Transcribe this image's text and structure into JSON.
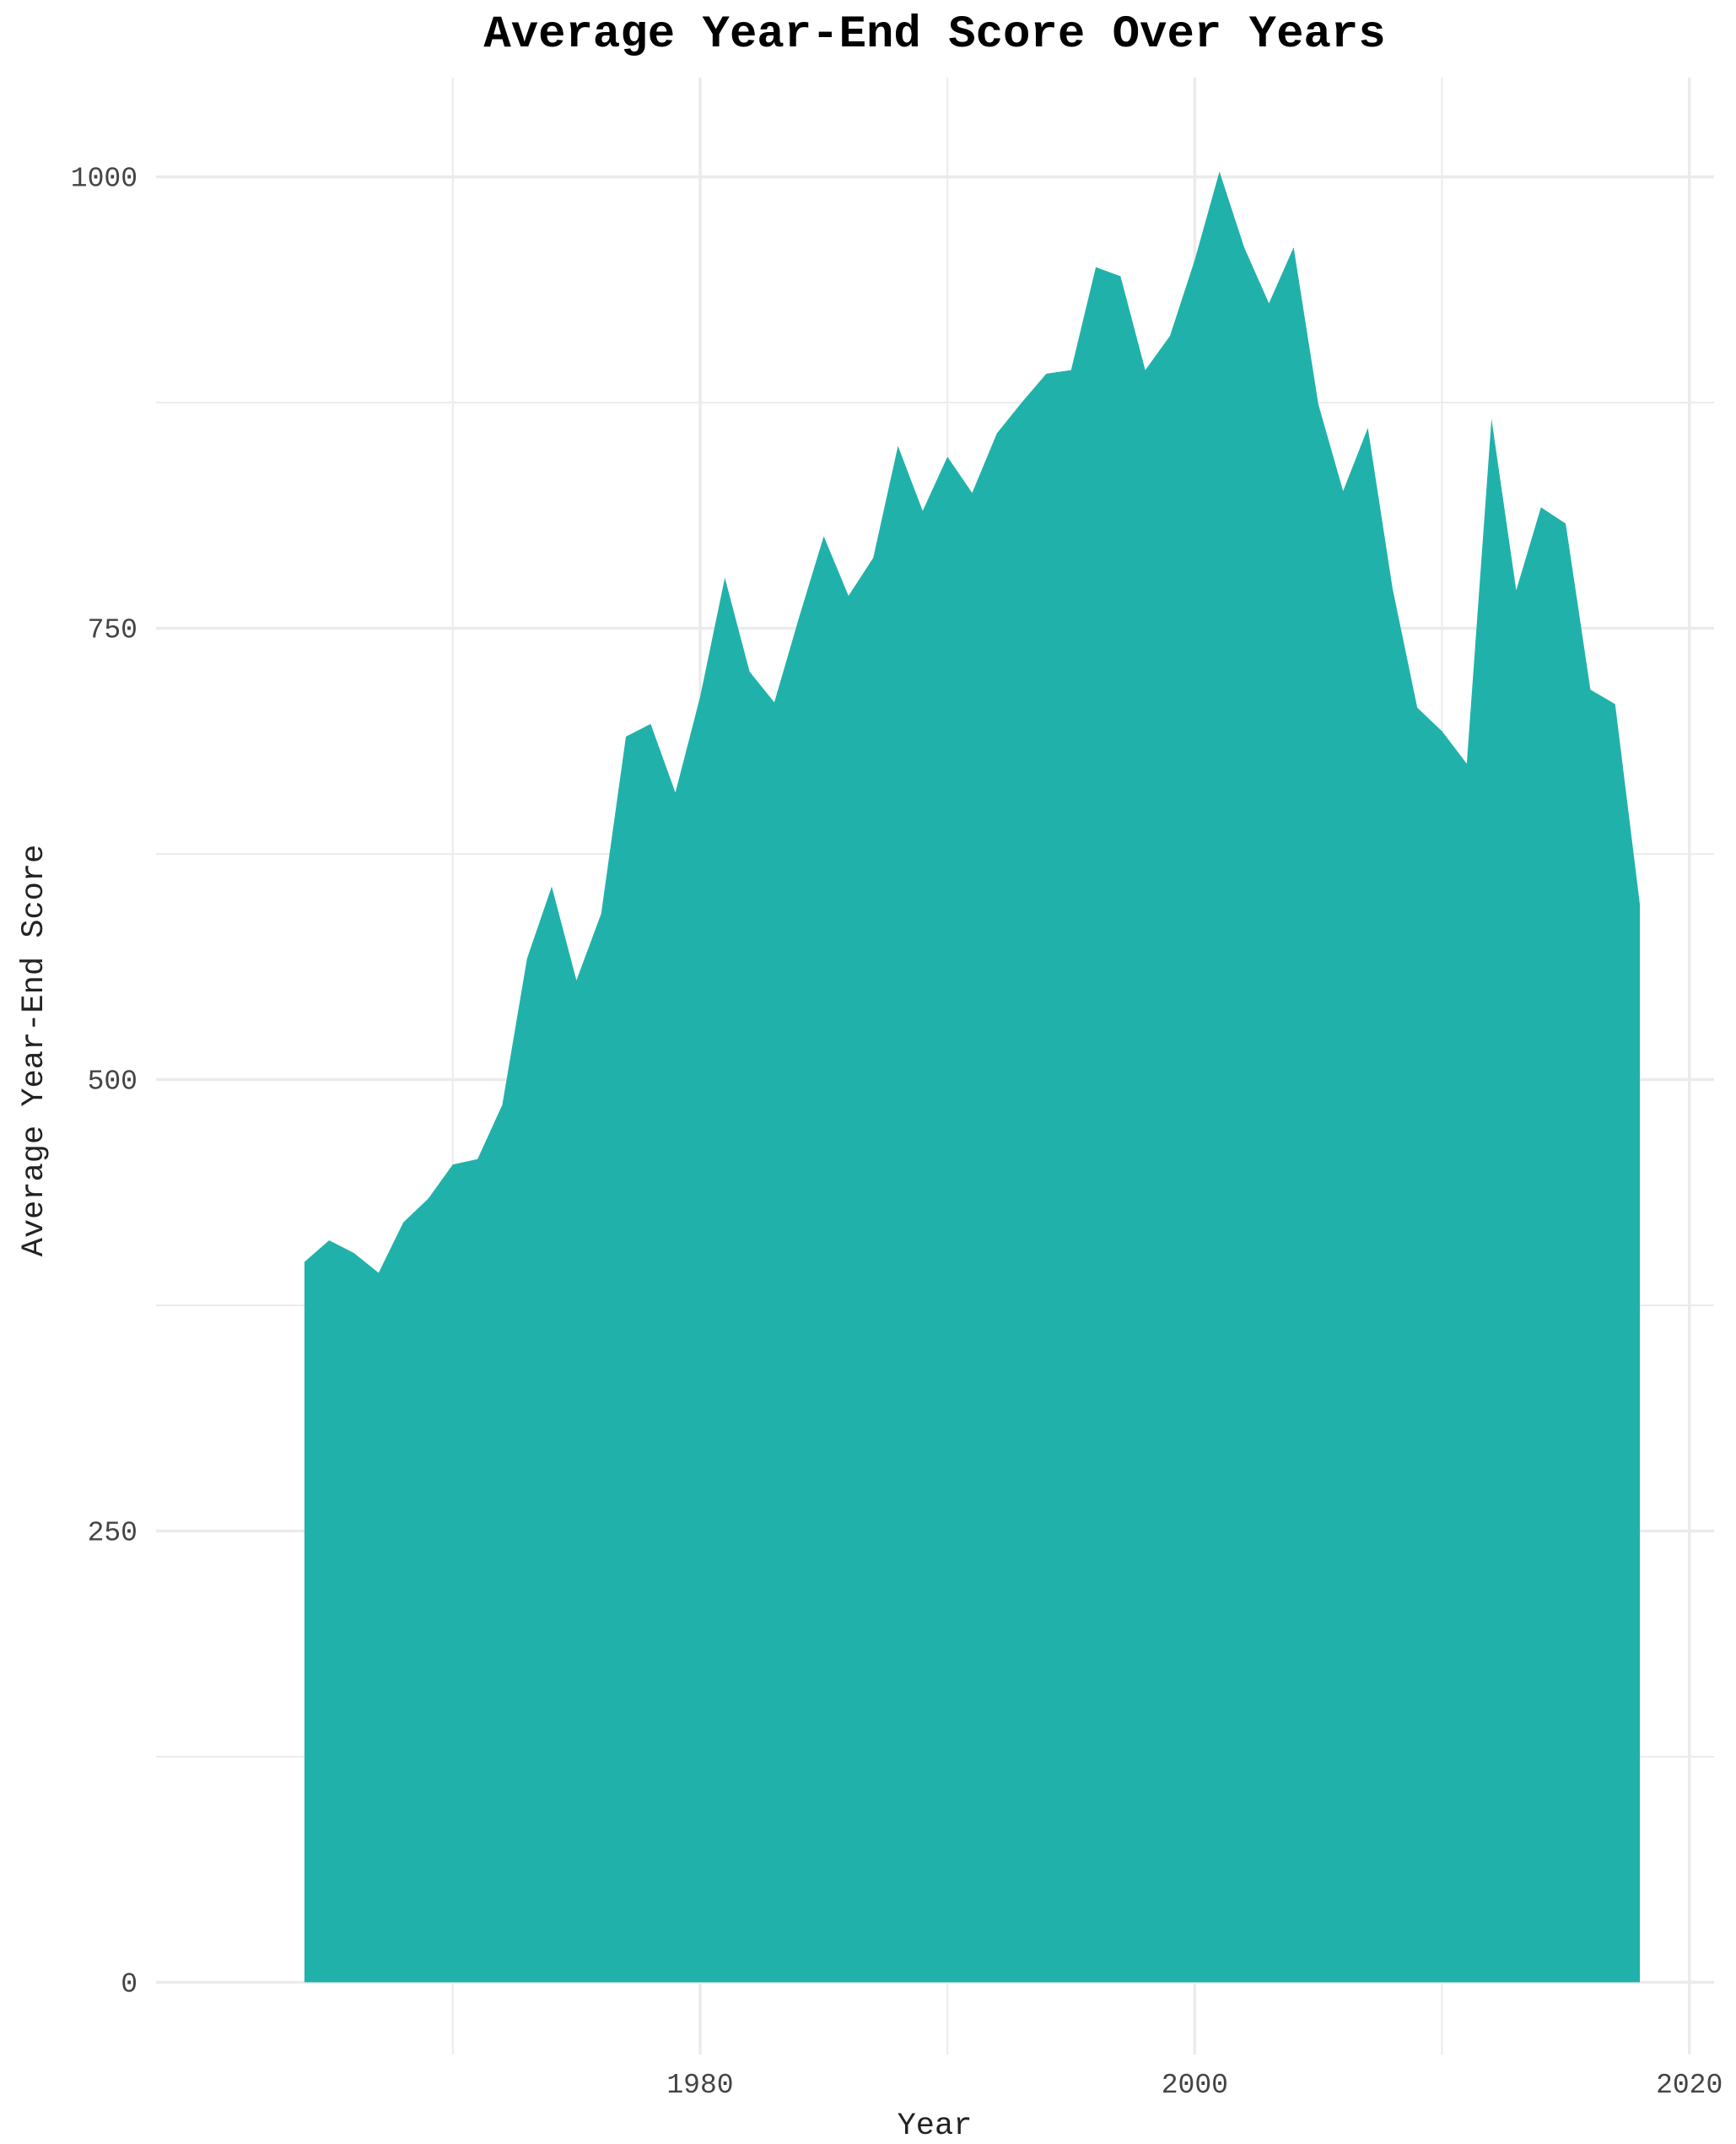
{
  "chart_data": {
    "type": "area",
    "title": "Average Year-End Score Over Years",
    "xlabel": "Year",
    "ylabel": "Average Year-End Score",
    "xlim": [
      1958,
      2021
    ],
    "ylim": [
      -40,
      1055
    ],
    "x_ticks": [
      1980,
      2000,
      2020
    ],
    "x_minor_ticks": [
      1970,
      1990,
      2010
    ],
    "y_ticks": [
      0,
      250,
      500,
      750,
      1000
    ],
    "y_minor_ticks": [
      125,
      375,
      625,
      875
    ],
    "grid": true,
    "legend": "none",
    "colors": {
      "fill": "#20B2AA",
      "grid": "#EBEBEB",
      "background": "#FFFFFF"
    },
    "series": [
      {
        "x": [
          1964,
          1965,
          1966,
          1967,
          1968,
          1969,
          1970,
          1971,
          1972,
          1973,
          1974,
          1975,
          1976,
          1977,
          1978,
          1979,
          1980,
          1981,
          1982,
          1983,
          1984,
          1985,
          1986,
          1987,
          1988,
          1989,
          1990,
          1991,
          1992,
          1993,
          1994,
          1995,
          1996,
          1997,
          1998,
          1999,
          2000,
          2001,
          2002,
          2003,
          2004,
          2005,
          2006,
          2007,
          2008,
          2009,
          2010,
          2011,
          2012,
          2013,
          2014,
          2015,
          2016,
          2017,
          2018
        ],
        "values": [
          399,
          411,
          404,
          393,
          421,
          434,
          453,
          456,
          486,
          567,
          607,
          555,
          592,
          690,
          697,
          659,
          712,
          778,
          726,
          709,
          756,
          801,
          768,
          789,
          851,
          815,
          845,
          825,
          858,
          875,
          891,
          893,
          950,
          945,
          893,
          912,
          954,
          1003,
          961,
          930,
          961,
          874,
          826,
          861,
          772,
          706,
          693,
          675,
          866,
          771,
          817,
          808,
          716,
          708,
          597
        ]
      }
    ]
  }
}
